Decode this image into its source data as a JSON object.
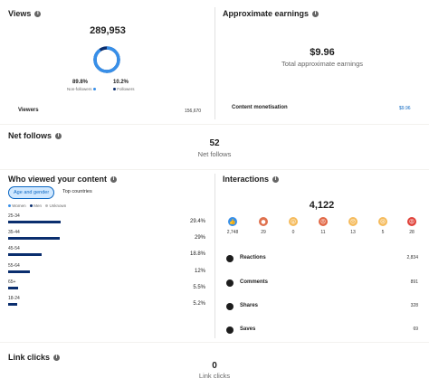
{
  "views": {
    "title": "Views",
    "total": "289,953",
    "non_followers_pct": "89.8%",
    "non_followers_label": "Non-followers",
    "followers_pct": "10.2%",
    "followers_label": "Followers",
    "viewers_label": "Viewers",
    "viewers_value": "156,670",
    "donut_non_followers_fraction": 0.898,
    "colors": {
      "non_followers": "#378fe9",
      "followers": "#0a2e6e"
    }
  },
  "earnings": {
    "title": "Approximate earnings",
    "amount": "$9.96",
    "subtitle": "Total approximate earnings",
    "row_label": "Content monetisation",
    "row_value": "$9.96",
    "link_color": "#0a66c2"
  },
  "net_follows": {
    "title": "Net follows",
    "value": "52",
    "subtitle": "Net follows"
  },
  "who_viewed": {
    "title": "Who viewed your content",
    "tabs": [
      {
        "label": "Age and gender",
        "active": true
      },
      {
        "label": "Top countries",
        "active": false
      }
    ],
    "legend": [
      "Women",
      "Men",
      "Unknown"
    ],
    "rows": [
      {
        "label": "25-34",
        "pct": "29.4%",
        "fraction": 0.294
      },
      {
        "label": "35-44",
        "pct": "29%",
        "fraction": 0.29
      },
      {
        "label": "45-54",
        "pct": "18.8%",
        "fraction": 0.188
      },
      {
        "label": "55-64",
        "pct": "12%",
        "fraction": 0.12
      },
      {
        "label": "65+",
        "pct": "5.5%",
        "fraction": 0.055
      },
      {
        "label": "18-24",
        "pct": "5.2%",
        "fraction": 0.052
      }
    ]
  },
  "interactions": {
    "title": "Interactions",
    "total": "4,122",
    "reactions": [
      {
        "icon": "like-icon",
        "glyph": "👍",
        "color": "#378fe9",
        "count": "2,748"
      },
      {
        "icon": "heart-icon",
        "glyph": "●",
        "color": "#df704d",
        "count": "29"
      },
      {
        "icon": "surprised-icon",
        "glyph": "😮",
        "color": "#f5bb5c",
        "count": "0"
      },
      {
        "icon": "angry-icon",
        "glyph": "😠",
        "color": "#e16745",
        "count": "11"
      },
      {
        "icon": "wow-icon",
        "glyph": "😯",
        "color": "#f5bb5c",
        "count": "13"
      },
      {
        "icon": "sad-icon",
        "glyph": "😢",
        "color": "#f5bb5c",
        "count": "5"
      },
      {
        "icon": "rage-icon",
        "glyph": "😡",
        "color": "#e0423a",
        "count": "28"
      }
    ],
    "rows": [
      {
        "icon": "reactions-icon",
        "label": "Reactions",
        "value": "2,834"
      },
      {
        "icon": "comments-icon",
        "label": "Comments",
        "value": "891"
      },
      {
        "icon": "shares-icon",
        "label": "Shares",
        "value": "328"
      },
      {
        "icon": "saves-icon",
        "label": "Saves",
        "value": "69"
      }
    ]
  },
  "link_clicks": {
    "title": "Link clicks",
    "value": "0",
    "subtitle": "Link clicks"
  }
}
